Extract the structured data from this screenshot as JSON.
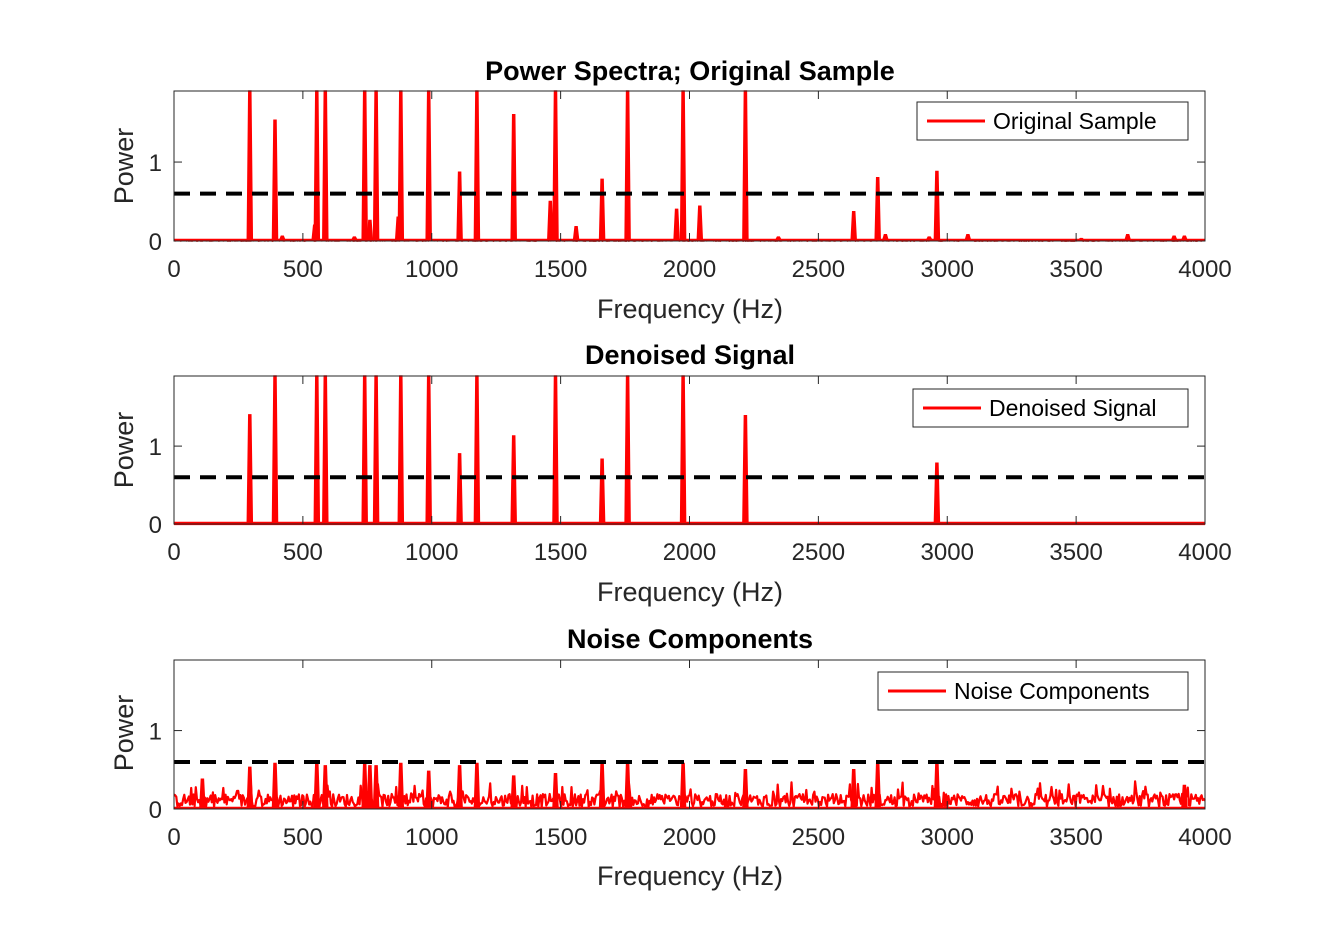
{
  "chart_data": [
    {
      "type": "line",
      "title": "Power Spectra; Original Sample",
      "xlabel": "Frequency (Hz)",
      "ylabel": "Power",
      "xlim": [
        0,
        4000
      ],
      "ylim": [
        0,
        1.9
      ],
      "x_ticks": [
        "0",
        "500",
        "1000",
        "1500",
        "2000",
        "2500",
        "3000",
        "3500",
        "4000"
      ],
      "y_ticks": [
        "0",
        "1"
      ],
      "grid": false,
      "legend": "top-right",
      "threshold": 0.6,
      "series": [
        {
          "name": "Original Sample",
          "color": "#ff0000",
          "noise_floor": 0.01,
          "peaks": [
            {
              "x": 294,
              "y": 1.9
            },
            {
              "x": 392,
              "y": 1.53
            },
            {
              "x": 420,
              "y": 0.06
            },
            {
              "x": 546,
              "y": 0.2
            },
            {
              "x": 554,
              "y": 1.9
            },
            {
              "x": 587,
              "y": 1.9
            },
            {
              "x": 700,
              "y": 0.05
            },
            {
              "x": 740,
              "y": 1.9
            },
            {
              "x": 760,
              "y": 0.26
            },
            {
              "x": 784,
              "y": 1.9
            },
            {
              "x": 870,
              "y": 0.3
            },
            {
              "x": 880,
              "y": 1.9
            },
            {
              "x": 988,
              "y": 1.9
            },
            {
              "x": 1108,
              "y": 0.87
            },
            {
              "x": 1175,
              "y": 1.9
            },
            {
              "x": 1318,
              "y": 1.6
            },
            {
              "x": 1460,
              "y": 0.5
            },
            {
              "x": 1480,
              "y": 1.9
            },
            {
              "x": 1560,
              "y": 0.18
            },
            {
              "x": 1661,
              "y": 0.78
            },
            {
              "x": 1760,
              "y": 1.9
            },
            {
              "x": 1950,
              "y": 0.4
            },
            {
              "x": 1975,
              "y": 1.9
            },
            {
              "x": 2040,
              "y": 0.44
            },
            {
              "x": 2217,
              "y": 1.9
            },
            {
              "x": 2345,
              "y": 0.05
            },
            {
              "x": 2637,
              "y": 0.37
            },
            {
              "x": 2730,
              "y": 0.8
            },
            {
              "x": 2760,
              "y": 0.08
            },
            {
              "x": 2930,
              "y": 0.05
            },
            {
              "x": 2960,
              "y": 0.88
            },
            {
              "x": 3080,
              "y": 0.08
            },
            {
              "x": 3520,
              "y": 0.03
            },
            {
              "x": 3700,
              "y": 0.08
            },
            {
              "x": 3880,
              "y": 0.06
            },
            {
              "x": 3920,
              "y": 0.06
            }
          ]
        }
      ]
    },
    {
      "type": "line",
      "title": "Denoised Signal",
      "xlabel": "Frequency (Hz)",
      "ylabel": "Power",
      "xlim": [
        0,
        4000
      ],
      "ylim": [
        0,
        1.9
      ],
      "x_ticks": [
        "0",
        "500",
        "1000",
        "1500",
        "2000",
        "2500",
        "3000",
        "3500",
        "4000"
      ],
      "y_ticks": [
        "0",
        "1"
      ],
      "grid": false,
      "legend": "top-right",
      "threshold": 0.6,
      "series": [
        {
          "name": "Denoised Signal",
          "color": "#ff0000",
          "noise_floor": 0,
          "peaks": [
            {
              "x": 294,
              "y": 1.4
            },
            {
              "x": 392,
              "y": 1.9
            },
            {
              "x": 554,
              "y": 1.9
            },
            {
              "x": 587,
              "y": 1.9
            },
            {
              "x": 740,
              "y": 1.9
            },
            {
              "x": 784,
              "y": 1.9
            },
            {
              "x": 880,
              "y": 1.9
            },
            {
              "x": 988,
              "y": 1.9
            },
            {
              "x": 1108,
              "y": 0.9
            },
            {
              "x": 1175,
              "y": 1.9
            },
            {
              "x": 1318,
              "y": 1.13
            },
            {
              "x": 1480,
              "y": 1.9
            },
            {
              "x": 1661,
              "y": 0.83
            },
            {
              "x": 1760,
              "y": 1.9
            },
            {
              "x": 1975,
              "y": 1.9
            },
            {
              "x": 2217,
              "y": 1.39
            },
            {
              "x": 2960,
              "y": 0.78
            }
          ]
        }
      ]
    },
    {
      "type": "line",
      "title": "Noise Components",
      "xlabel": "Frequency (Hz)",
      "ylabel": "Power",
      "xlim": [
        0,
        4000
      ],
      "ylim": [
        0,
        1.9
      ],
      "x_ticks": [
        "0",
        "500",
        "1000",
        "1500",
        "2000",
        "2500",
        "3000",
        "3500",
        "4000"
      ],
      "y_ticks": [
        "0",
        "1"
      ],
      "grid": false,
      "legend": "top-right",
      "threshold": 0.6,
      "series": [
        {
          "name": "Noise Components",
          "color": "#ff0000",
          "noise_floor": 0.12,
          "peaks": [
            {
              "x": 110,
              "y": 0.38
            },
            {
              "x": 294,
              "y": 0.53
            },
            {
              "x": 392,
              "y": 0.58
            },
            {
              "x": 554,
              "y": 0.58
            },
            {
              "x": 587,
              "y": 0.55
            },
            {
              "x": 740,
              "y": 0.57
            },
            {
              "x": 760,
              "y": 0.55
            },
            {
              "x": 784,
              "y": 0.55
            },
            {
              "x": 880,
              "y": 0.58
            },
            {
              "x": 988,
              "y": 0.48
            },
            {
              "x": 1108,
              "y": 0.55
            },
            {
              "x": 1175,
              "y": 0.58
            },
            {
              "x": 1318,
              "y": 0.42
            },
            {
              "x": 1480,
              "y": 0.45
            },
            {
              "x": 1661,
              "y": 0.58
            },
            {
              "x": 1760,
              "y": 0.58
            },
            {
              "x": 1975,
              "y": 0.58
            },
            {
              "x": 2217,
              "y": 0.5
            },
            {
              "x": 2637,
              "y": 0.5
            },
            {
              "x": 2730,
              "y": 0.58
            },
            {
              "x": 2960,
              "y": 0.58
            },
            {
              "x": 3920,
              "y": 0.3
            }
          ]
        }
      ]
    }
  ]
}
